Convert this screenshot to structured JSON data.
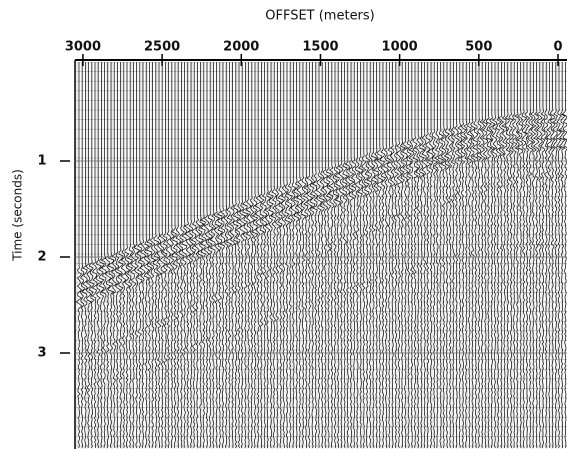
{
  "chart_data": {
    "type": "seismic",
    "title": "OFFSET (meters)",
    "y_label": "Time (seconds)",
    "xlim": [
      3050,
      0
    ],
    "xticks": [
      3000,
      2500,
      2000,
      1500,
      1000,
      500,
      0
    ],
    "ylim": [
      0,
      4
    ],
    "yticks": [
      1,
      2,
      3
    ],
    "color": "#000000"
  }
}
